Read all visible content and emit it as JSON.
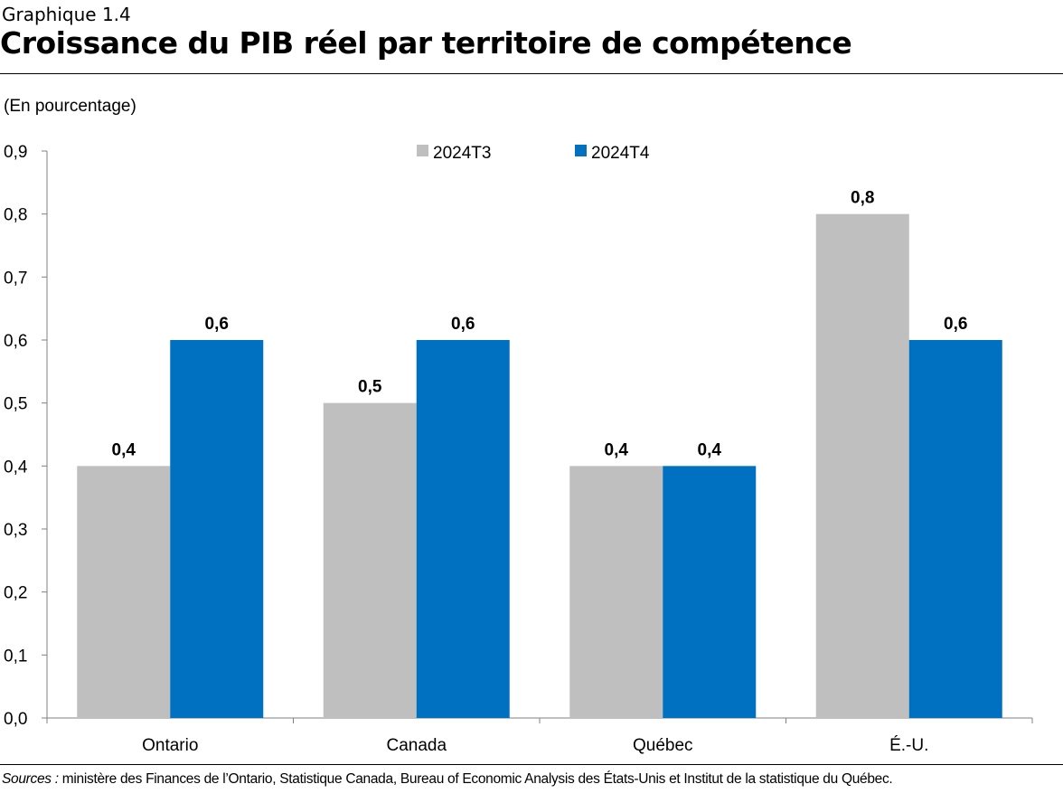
{
  "header": {
    "label": "Graphique 1.4",
    "title": "Croissance du PIB réel par territoire de compétence"
  },
  "unit_label": "(En pourcentage)",
  "chart_data": {
    "type": "bar",
    "title": "Croissance du PIB réel par territoire de compétence",
    "ylabel": "(En pourcentage)",
    "xlabel": "",
    "categories": [
      "Ontario",
      "Canada",
      "Québec",
      "É.-U."
    ],
    "series": [
      {
        "name": "2024T3",
        "values": [
          0.4,
          0.5,
          0.4,
          0.8
        ],
        "color": "#bfbfbf"
      },
      {
        "name": "2024T4",
        "values": [
          0.6,
          0.6,
          0.4,
          0.6
        ],
        "color": "#0070c0"
      }
    ],
    "data_labels": [
      [
        "0,4",
        "0,5",
        "0,4",
        "0,8"
      ],
      [
        "0,6",
        "0,6",
        "0,4",
        "0,6"
      ]
    ],
    "ylim": [
      0,
      0.9
    ],
    "yticks": [
      0,
      0.1,
      0.2,
      0.3,
      0.4,
      0.5,
      0.6,
      0.7,
      0.8,
      0.9
    ],
    "ytick_labels": [
      "0,0",
      "0,1",
      "0,2",
      "0,3",
      "0,4",
      "0,5",
      "0,6",
      "0,7",
      "0,8",
      "0,9"
    ],
    "grid": false,
    "legend_position": "top-center"
  },
  "footer": {
    "source_prefix": "Sources :",
    "source_text": " ministère des Finances de l’Ontario, Statistique Canada, Bureau of Economic Analysis des États-Unis et Institut de la statistique du Québec."
  }
}
